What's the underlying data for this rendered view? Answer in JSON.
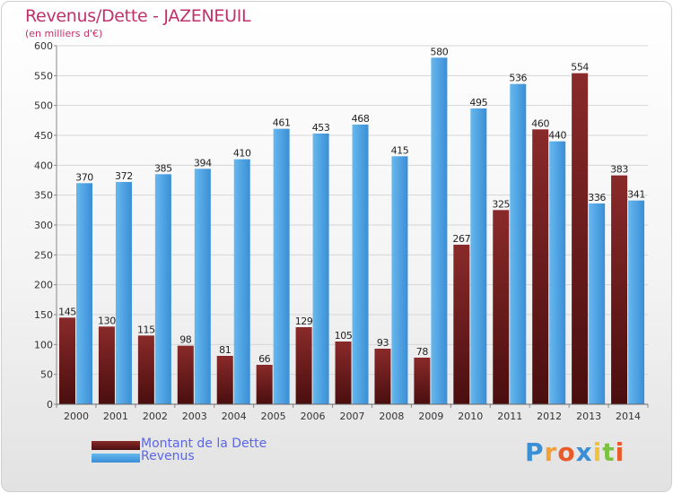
{
  "title": "Revenus/Dette - JAZENEUIL",
  "subtitle": "(en milliers d'€)",
  "colors": {
    "dette_top": "#8a2a2a",
    "dette_bottom": "#4a0e0e",
    "revenus_top": "#5bb0ea",
    "revenus_bottom": "#3a8ed6",
    "title": "#c0306a",
    "legend_text": "#5a66e6",
    "axis_text": "#333333"
  },
  "chart_data": {
    "type": "bar",
    "categories": [
      "2000",
      "2001",
      "2002",
      "2003",
      "2004",
      "2005",
      "2006",
      "2007",
      "2008",
      "2009",
      "2010",
      "2011",
      "2012",
      "2013",
      "2014"
    ],
    "series": [
      {
        "name": "Montant de la Dette",
        "values": [
          145,
          130,
          115,
          98,
          81,
          66,
          129,
          105,
          93,
          78,
          267,
          325,
          460,
          554,
          383
        ]
      },
      {
        "name": "Revenus",
        "values": [
          370,
          372,
          385,
          394,
          410,
          461,
          453,
          468,
          415,
          580,
          495,
          536,
          440,
          336,
          341
        ]
      }
    ],
    "ylim": [
      0,
      600
    ],
    "yticks": [
      0,
      50,
      100,
      150,
      200,
      250,
      300,
      350,
      400,
      450,
      500,
      550,
      600
    ],
    "grid": true,
    "legend_placement": "bottom-left"
  },
  "legend": {
    "items": [
      {
        "label": "Montant de la Dette",
        "color": "#6b1818"
      },
      {
        "label": "Revenus",
        "color": "#4aa0e0"
      }
    ]
  },
  "logo": {
    "text": "Proxiti"
  }
}
